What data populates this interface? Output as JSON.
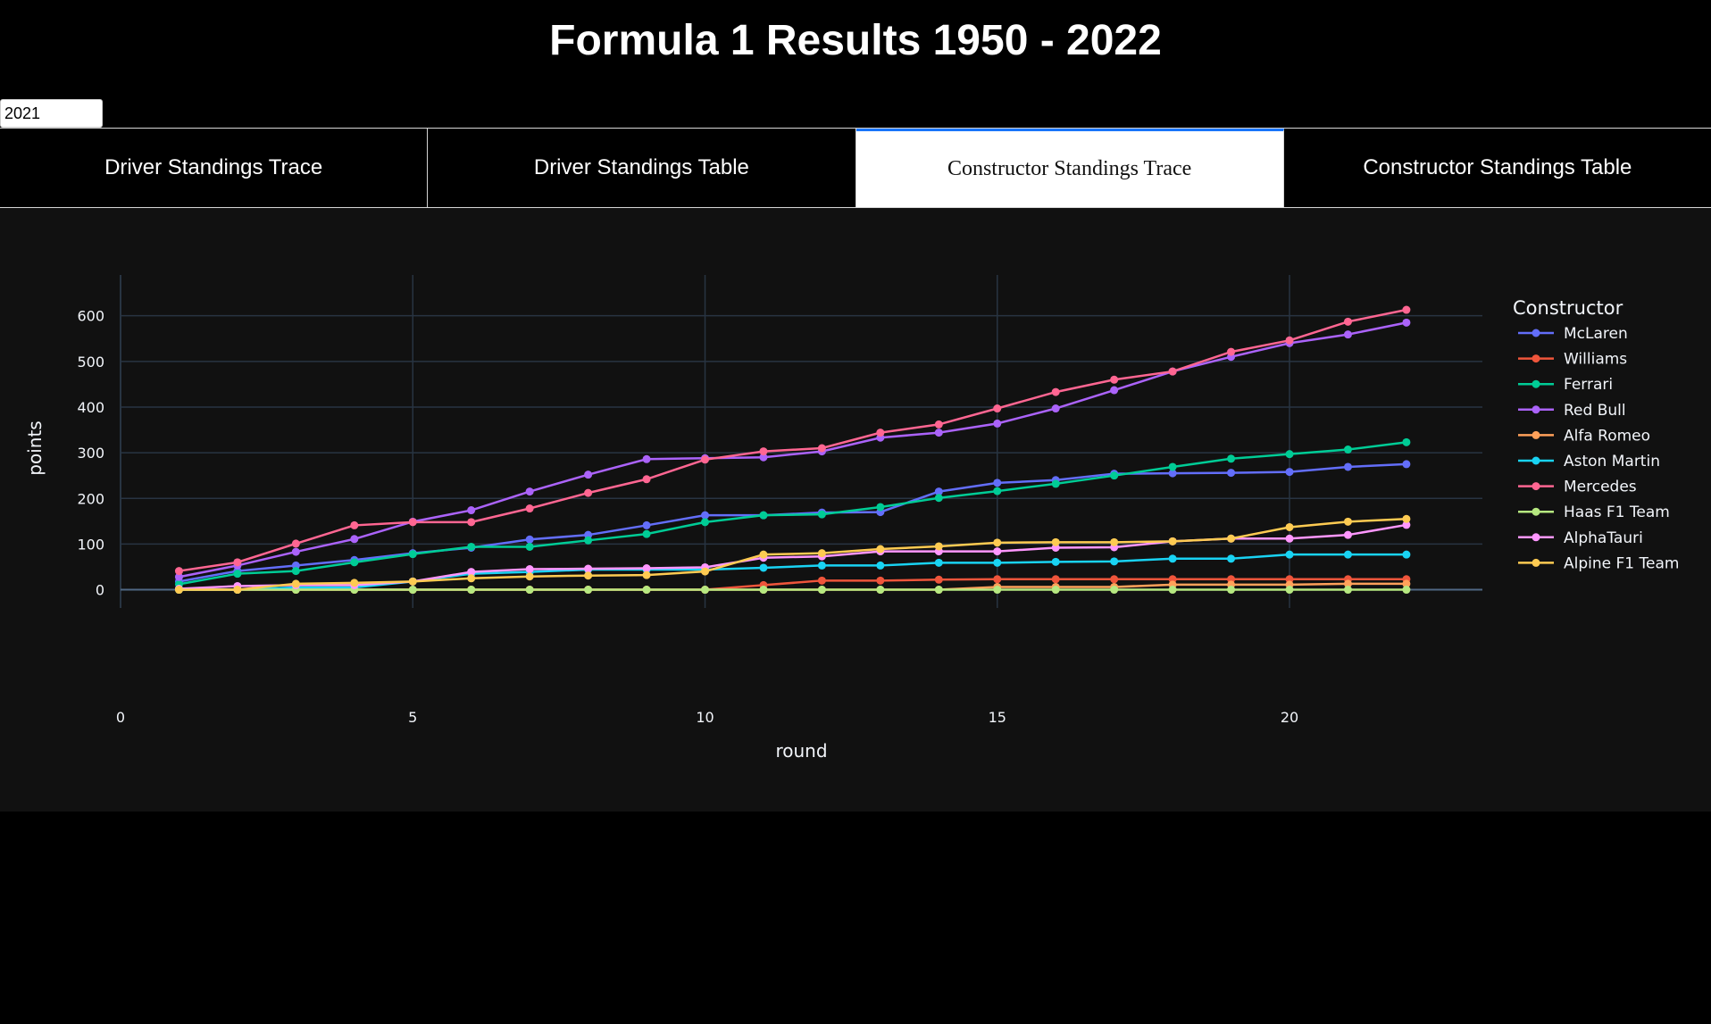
{
  "page": {
    "title": "Formula 1 Results 1950 - 2022",
    "year_selected": "2021"
  },
  "tabs": [
    {
      "label": "Driver Standings Trace",
      "selected": false
    },
    {
      "label": "Driver Standings Table",
      "selected": false
    },
    {
      "label": "Constructor Standings Trace",
      "selected": true
    },
    {
      "label": "Constructor Standings Table",
      "selected": false
    }
  ],
  "chart_data": {
    "type": "line",
    "xlabel": "round",
    "ylabel": "points",
    "xlim": [
      0,
      23.3
    ],
    "ylim": [
      -40,
      660
    ],
    "xticks": [
      0,
      5,
      10,
      15,
      20
    ],
    "yticks": [
      0,
      100,
      200,
      300,
      400,
      500,
      600
    ],
    "grid": true,
    "legend_title": "Constructor",
    "legend_position": "right",
    "x": [
      1,
      2,
      3,
      4,
      5,
      6,
      7,
      8,
      9,
      10,
      11,
      12,
      13,
      14,
      15,
      16,
      17,
      18,
      19,
      20,
      21,
      22
    ],
    "series": [
      {
        "name": "McLaren",
        "color": "#636efa",
        "values": [
          18,
          41,
          53,
          65,
          80,
          92,
          110,
          120,
          141,
          163,
          163,
          169,
          170,
          215,
          234,
          240,
          254,
          255,
          256,
          258,
          269,
          275
        ]
      },
      {
        "name": "Williams",
        "color": "#ef553b",
        "values": [
          0,
          0,
          0,
          0,
          0,
          0,
          0,
          0,
          0,
          0,
          10,
          20,
          20,
          22,
          23,
          23,
          23,
          23,
          23,
          23,
          23,
          23
        ]
      },
      {
        "name": "Ferrari",
        "color": "#00cc96",
        "values": [
          12,
          35,
          41,
          60,
          78,
          94,
          94,
          108,
          122,
          148,
          163,
          165,
          181,
          201,
          216,
          232,
          250,
          269,
          287,
          297,
          307,
          323
        ]
      },
      {
        "name": "Red Bull",
        "color": "#ab63fa",
        "values": [
          28,
          53,
          83,
          111,
          149,
          174,
          215,
          252,
          286,
          288,
          290,
          303,
          333,
          344,
          364,
          397,
          437,
          478,
          510,
          540,
          559,
          585
        ]
      },
      {
        "name": "Alfa Romeo",
        "color": "#ffa15a",
        "values": [
          0,
          0,
          0,
          0,
          0,
          0,
          0,
          0,
          0,
          0,
          0,
          0,
          0,
          0,
          6,
          6,
          6,
          11,
          11,
          11,
          13,
          13
        ]
      },
      {
        "name": "Aston Martin",
        "color": "#19d3f3",
        "values": [
          0,
          0,
          5,
          5,
          18,
          35,
          39,
          44,
          44,
          44,
          48,
          53,
          53,
          59,
          59,
          61,
          62,
          68,
          68,
          77,
          77,
          77
        ]
      },
      {
        "name": "Mercedes",
        "color": "#ff6692",
        "values": [
          41,
          60,
          101,
          141,
          148,
          148,
          178,
          212,
          242,
          285,
          303,
          310,
          344,
          362,
          397,
          433,
          460,
          478,
          521,
          546,
          587,
          613
        ]
      },
      {
        "name": "Haas F1 Team",
        "color": "#b6e880",
        "values": [
          0,
          0,
          0,
          0,
          0,
          0,
          0,
          0,
          0,
          0,
          0,
          0,
          0,
          0,
          0,
          0,
          0,
          0,
          0,
          0,
          0,
          0
        ]
      },
      {
        "name": "AlphaTauri",
        "color": "#ff97ff",
        "values": [
          2,
          8,
          10,
          10,
          18,
          39,
          45,
          46,
          47,
          49,
          70,
          73,
          84,
          84,
          84,
          92,
          93,
          106,
          112,
          112,
          120,
          142
        ]
      },
      {
        "name": "Alpine F1 Team",
        "color": "#fecb52",
        "values": [
          0,
          0,
          13,
          15,
          18,
          25,
          29,
          31,
          32,
          40,
          77,
          80,
          89,
          95,
          103,
          104,
          104,
          106,
          112,
          137,
          149,
          155
        ]
      }
    ]
  }
}
